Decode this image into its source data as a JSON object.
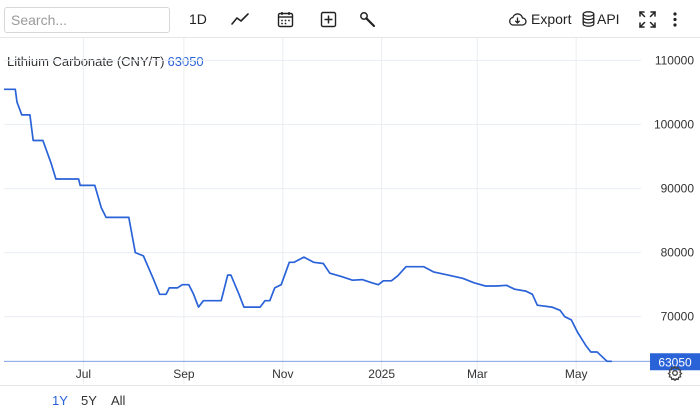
{
  "toolbar": {
    "search_placeholder": "Search...",
    "interval_label": "1D",
    "export_label": "Export",
    "api_label": "API",
    "icons": [
      "line-chart-icon",
      "calendar-icon",
      "add-compare-icon",
      "wrench-icon",
      "cloud-download-icon",
      "database-icon",
      "fullscreen-icon",
      "more-vertical-icon"
    ]
  },
  "ranges": [
    {
      "label": "1Y",
      "active": true
    },
    {
      "label": "5Y",
      "active": false
    },
    {
      "label": "All",
      "active": false
    }
  ],
  "colors": {
    "line": "#2a62d8",
    "accent": "#2a62d8",
    "grid": "#e9eef3"
  },
  "chart_data": {
    "type": "line",
    "title": "Lithium Carbonate (CNY/T)",
    "last_value": "63050",
    "last_value_number": 63050,
    "x_ticks": [
      {
        "label": "Jul",
        "date": "2024-07-01"
      },
      {
        "label": "Sep",
        "date": "2024-09-01"
      },
      {
        "label": "Nov",
        "date": "2024-11-01"
      },
      {
        "label": "2025",
        "date": "2025-01-01"
      },
      {
        "label": "Mar",
        "date": "2025-03-01"
      },
      {
        "label": "May",
        "date": "2025-05-01"
      }
    ],
    "y_ticks": [
      70000,
      80000,
      90000,
      100000,
      110000
    ],
    "ylim": [
      59500,
      113500
    ],
    "xlim": [
      "2024-05-13",
      "2025-06-10"
    ],
    "grid": true,
    "series": [
      {
        "points": [
          [
            "2024-05-13",
            105500
          ],
          [
            "2024-05-20",
            105500
          ],
          [
            "2024-05-21",
            103500
          ],
          [
            "2024-05-24",
            101500
          ],
          [
            "2024-05-29",
            101500
          ],
          [
            "2024-05-31",
            97500
          ],
          [
            "2024-06-06",
            97500
          ],
          [
            "2024-06-11",
            94000
          ],
          [
            "2024-06-14",
            91500
          ],
          [
            "2024-06-28",
            91500
          ],
          [
            "2024-06-29",
            90500
          ],
          [
            "2024-07-08",
            90500
          ],
          [
            "2024-07-12",
            87000
          ],
          [
            "2024-07-15",
            85500
          ],
          [
            "2024-07-29",
            85500
          ],
          [
            "2024-08-02",
            80000
          ],
          [
            "2024-08-07",
            79500
          ],
          [
            "2024-08-13",
            76000
          ],
          [
            "2024-08-17",
            73500
          ],
          [
            "2024-08-21",
            73500
          ],
          [
            "2024-08-23",
            74500
          ],
          [
            "2024-08-28",
            74500
          ],
          [
            "2024-08-31",
            75000
          ],
          [
            "2024-09-04",
            75000
          ],
          [
            "2024-09-07",
            73500
          ],
          [
            "2024-09-10",
            71500
          ],
          [
            "2024-09-13",
            72500
          ],
          [
            "2024-09-24",
            72500
          ],
          [
            "2024-09-28",
            76500
          ],
          [
            "2024-09-30",
            76500
          ],
          [
            "2024-10-05",
            73500
          ],
          [
            "2024-10-08",
            71500
          ],
          [
            "2024-10-18",
            71500
          ],
          [
            "2024-10-21",
            72500
          ],
          [
            "2024-10-24",
            72500
          ],
          [
            "2024-10-27",
            74500
          ],
          [
            "2024-10-31",
            75000
          ],
          [
            "2024-11-05",
            78500
          ],
          [
            "2024-11-08",
            78500
          ],
          [
            "2024-11-14",
            79300
          ],
          [
            "2024-11-20",
            78500
          ],
          [
            "2024-11-26",
            78300
          ],
          [
            "2024-11-30",
            76800
          ],
          [
            "2024-12-07",
            76300
          ],
          [
            "2024-12-14",
            75700
          ],
          [
            "2024-12-20",
            75800
          ],
          [
            "2024-12-26",
            75300
          ],
          [
            "2024-12-30",
            75000
          ],
          [
            "2025-01-02",
            75600
          ],
          [
            "2025-01-07",
            75600
          ],
          [
            "2025-01-11",
            76400
          ],
          [
            "2025-01-16",
            77800
          ],
          [
            "2025-01-27",
            77800
          ],
          [
            "2025-02-02",
            77000
          ],
          [
            "2025-02-11",
            76500
          ],
          [
            "2025-02-20",
            76000
          ],
          [
            "2025-02-27",
            75300
          ],
          [
            "2025-03-06",
            74800
          ],
          [
            "2025-03-13",
            74800
          ],
          [
            "2025-03-19",
            74900
          ],
          [
            "2025-03-24",
            74300
          ],
          [
            "2025-03-31",
            74000
          ],
          [
            "2025-04-04",
            73500
          ],
          [
            "2025-04-07",
            71800
          ],
          [
            "2025-04-16",
            71500
          ],
          [
            "2025-04-21",
            71000
          ],
          [
            "2025-04-24",
            70000
          ],
          [
            "2025-04-28",
            69500
          ],
          [
            "2025-05-02",
            67500
          ],
          [
            "2025-05-07",
            65500
          ],
          [
            "2025-05-10",
            64500
          ],
          [
            "2025-05-14",
            64500
          ],
          [
            "2025-05-16",
            64000
          ],
          [
            "2025-05-20",
            63050
          ],
          [
            "2025-05-23",
            63050
          ]
        ]
      }
    ]
  }
}
